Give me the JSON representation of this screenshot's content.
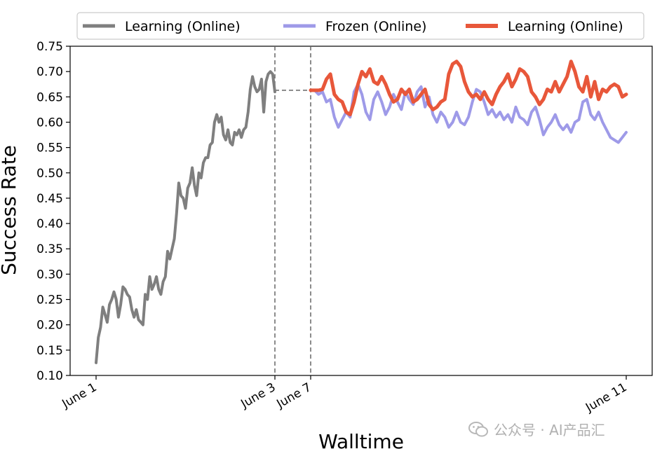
{
  "chart_data": {
    "type": "line",
    "title": "",
    "xlabel": "Walltime",
    "ylabel": "Success Rate",
    "ylim": [
      0.1,
      0.75
    ],
    "yticks": [
      "0.10",
      "0.15",
      "0.20",
      "0.25",
      "0.30",
      "0.35",
      "0.40",
      "0.45",
      "0.50",
      "0.55",
      "0.60",
      "0.65",
      "0.70",
      "0.75"
    ],
    "xticks": [
      "June 1",
      "June 3",
      "June 7",
      "June 11"
    ],
    "grid": false,
    "legend_placement": "top",
    "vlines": [
      "June 3",
      "June 7"
    ],
    "gap_connector": {
      "from": "June 3",
      "to": "June 7",
      "value": 0.663
    },
    "series": [
      {
        "name": "Learning (Online)",
        "color": "#7f7f7f",
        "segment": "June 1 – June 3",
        "values": [
          0.125,
          0.175,
          0.195,
          0.235,
          0.22,
          0.205,
          0.24,
          0.25,
          0.265,
          0.25,
          0.215,
          0.24,
          0.275,
          0.27,
          0.26,
          0.255,
          0.23,
          0.215,
          0.23,
          0.21,
          0.205,
          0.2,
          0.26,
          0.25,
          0.295,
          0.27,
          0.28,
          0.295,
          0.27,
          0.26,
          0.285,
          0.295,
          0.345,
          0.33,
          0.35,
          0.37,
          0.42,
          0.48,
          0.455,
          0.45,
          0.43,
          0.47,
          0.48,
          0.51,
          0.475,
          0.455,
          0.5,
          0.49,
          0.52,
          0.53,
          0.53,
          0.555,
          0.56,
          0.6,
          0.615,
          0.6,
          0.61,
          0.575,
          0.565,
          0.585,
          0.56,
          0.555,
          0.58,
          0.575,
          0.585,
          0.57,
          0.585,
          0.59,
          0.62,
          0.665,
          0.69,
          0.67,
          0.66,
          0.665,
          0.685,
          0.62,
          0.68,
          0.695,
          0.7,
          0.695,
          0.66
        ]
      },
      {
        "name": "Frozen (Online)",
        "color": "#9e9ae8",
        "segment": "June 7 – June 11",
        "values": [
          0.663,
          0.663,
          0.655,
          0.66,
          0.64,
          0.645,
          0.61,
          0.59,
          0.605,
          0.62,
          0.61,
          0.66,
          0.675,
          0.655,
          0.62,
          0.605,
          0.645,
          0.66,
          0.64,
          0.615,
          0.63,
          0.655,
          0.64,
          0.625,
          0.66,
          0.645,
          0.635,
          0.66,
          0.67,
          0.63,
          0.65,
          0.615,
          0.6,
          0.62,
          0.61,
          0.59,
          0.6,
          0.62,
          0.6,
          0.595,
          0.61,
          0.64,
          0.665,
          0.66,
          0.64,
          0.615,
          0.625,
          0.61,
          0.62,
          0.605,
          0.615,
          0.6,
          0.63,
          0.61,
          0.605,
          0.595,
          0.62,
          0.63,
          0.605,
          0.575,
          0.59,
          0.6,
          0.615,
          0.595,
          0.585,
          0.595,
          0.58,
          0.6,
          0.605,
          0.64,
          0.645,
          0.615,
          0.605,
          0.62,
          0.6,
          0.585,
          0.57,
          0.565,
          0.56,
          0.57,
          0.58
        ]
      },
      {
        "name": "Learning (Online)",
        "color": "#e8573a",
        "segment": "June 7 – June 11",
        "values": [
          0.663,
          0.663,
          0.663,
          0.665,
          0.685,
          0.695,
          0.655,
          0.645,
          0.64,
          0.62,
          0.615,
          0.64,
          0.675,
          0.7,
          0.69,
          0.705,
          0.68,
          0.675,
          0.69,
          0.675,
          0.655,
          0.64,
          0.645,
          0.665,
          0.655,
          0.665,
          0.64,
          0.645,
          0.655,
          0.665,
          0.635,
          0.625,
          0.63,
          0.64,
          0.645,
          0.695,
          0.715,
          0.72,
          0.71,
          0.68,
          0.66,
          0.65,
          0.655,
          0.645,
          0.66,
          0.645,
          0.635,
          0.655,
          0.67,
          0.68,
          0.695,
          0.67,
          0.685,
          0.705,
          0.7,
          0.69,
          0.66,
          0.65,
          0.635,
          0.645,
          0.665,
          0.66,
          0.68,
          0.66,
          0.675,
          0.69,
          0.72,
          0.7,
          0.67,
          0.66,
          0.69,
          0.65,
          0.68,
          0.645,
          0.665,
          0.66,
          0.67,
          0.675,
          0.67,
          0.65,
          0.655
        ]
      }
    ]
  },
  "watermark": {
    "text": "公众号 · AI产品汇",
    "icon": "wechat-icon"
  }
}
